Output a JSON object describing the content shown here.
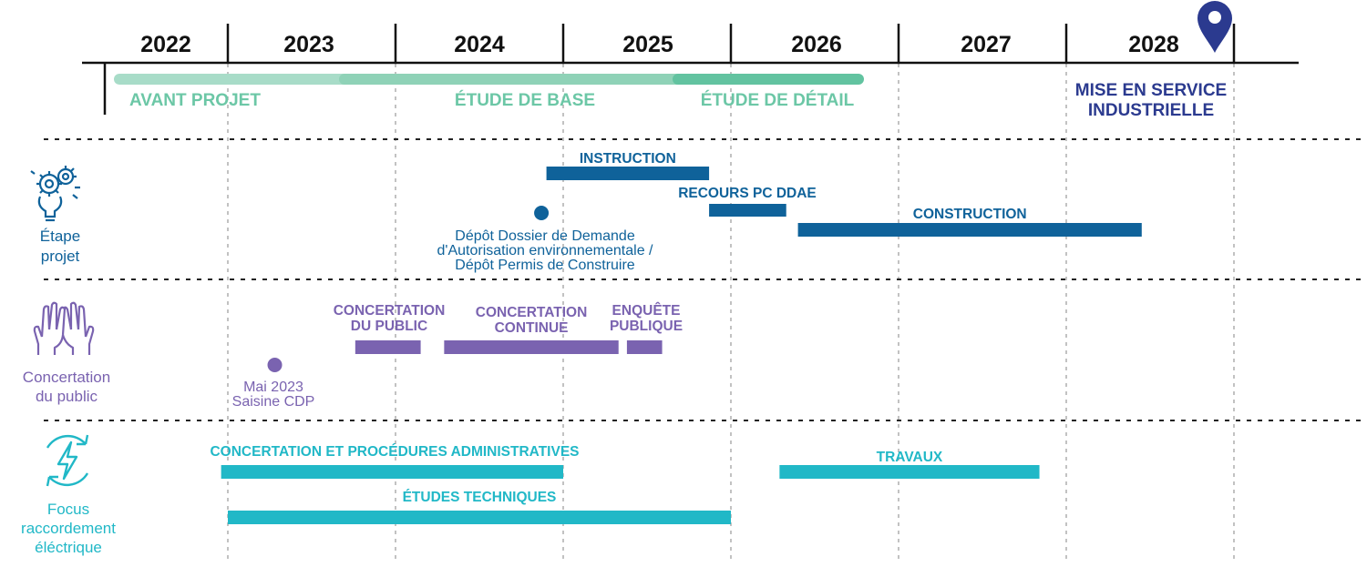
{
  "colors": {
    "axis": "#111111",
    "grid": "#9a9a9a",
    "separator": "#222222",
    "avant_projet": "#a8dcc8",
    "etude_base": "#8fd2b7",
    "etude_detail": "#62c3a0",
    "phase_text": "#6cc7a6",
    "blue": "#0f629a",
    "purple": "#7a63b0",
    "cyan": "#21b8c7",
    "navy": "#2b3a8f"
  },
  "years": [
    "2022",
    "2023",
    "2024",
    "2025",
    "2026",
    "2027",
    "2028"
  ],
  "phases": [
    {
      "label": "AVANT PROJET",
      "start": 2022.0,
      "end": 2023.7
    },
    {
      "label": "ÉTUDE DE BASE",
      "start": 2023.7,
      "end": 2025.65
    },
    {
      "label": "ÉTUDE DE DÉTAIL",
      "start": 2025.65,
      "end": 2026.75
    }
  ],
  "milestone": {
    "label_line1": "MISE EN SERVICE",
    "label_line2": "INDUSTRIELLE",
    "date": 2028.85,
    "icon": "location-pin-icon"
  },
  "rows": [
    {
      "key": "etape",
      "label_line1": "Étape",
      "label_line2": "projet",
      "icon": "gears-lightbulb-icon",
      "bars": [
        {
          "label": "INSTRUCTION",
          "start": 2024.9,
          "end": 2025.87
        },
        {
          "label": "RECOURS PC DDAE",
          "start": 2025.87,
          "end": 2026.33
        },
        {
          "label": "CONSTRUCTION",
          "start": 2026.4,
          "end": 2028.45
        }
      ],
      "events": [
        {
          "date": 2024.87,
          "lines": [
            "Dépôt Dossier de Demande",
            "d'Autorisation environnementale /",
            "Dépôt Permis de Construire"
          ]
        }
      ]
    },
    {
      "key": "concertation",
      "label_line1": "Concertation",
      "label_line2": "du public",
      "icon": "raised-hands-icon",
      "bars": [
        {
          "label_line1": "CONCERTATION",
          "label_line2": "DU PUBLIC",
          "start": 2023.76,
          "end": 2024.15
        },
        {
          "label_line1": "CONCERTATION",
          "label_line2": "CONTINUE",
          "start": 2024.29,
          "end": 2025.33
        },
        {
          "label_line1": "ENQUÊTE",
          "label_line2": "PUBLIQUE",
          "start": 2025.38,
          "end": 2025.59
        }
      ],
      "events": [
        {
          "date": 2023.28,
          "lines": [
            "Mai 2023",
            "Saisine CDP"
          ]
        }
      ]
    },
    {
      "key": "raccordement",
      "label_line1": "Focus",
      "label_line2": "raccordement",
      "label_line3": "éléctrique",
      "icon": "electric-bolt-icon",
      "bars": [
        {
          "label": "CONCERTATION ET PROCÉDURES ADMINISTRATIVES",
          "start": 2022.96,
          "end": 2025.0
        },
        {
          "label": "TRAVAUX",
          "start": 2026.29,
          "end": 2027.84
        },
        {
          "label": "ÉTUDES TECHNIQUES",
          "start": 2023.0,
          "end": 2026.0
        }
      ],
      "events": []
    }
  ]
}
